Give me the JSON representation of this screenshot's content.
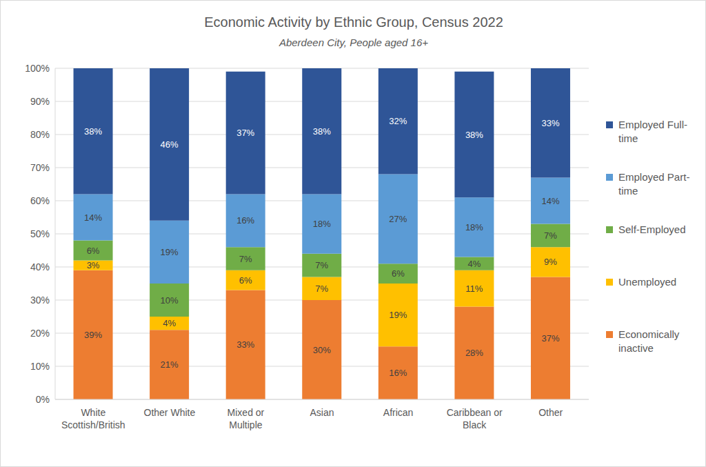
{
  "chart_data": {
    "type": "bar",
    "title": "Economic Activity by Ethnic Group, Census 2022",
    "subtitle": "Aberdeen City, People aged 16+",
    "categories": [
      "White Scottish/British",
      "Other White",
      "Mixed or Multiple",
      "Asian",
      "African",
      "Caribbean or Black",
      "Other"
    ],
    "series": [
      {
        "name": "Economically inactive",
        "color": "#ED7D31",
        "values": [
          39,
          21,
          33,
          30,
          16,
          28,
          37
        ],
        "value_labels": [
          "39%",
          "21%",
          "33%",
          "30%",
          "16%",
          "28%",
          "37%"
        ]
      },
      {
        "name": "Unemployed",
        "color": "#FFC000",
        "values": [
          3,
          4,
          6,
          7,
          19,
          11,
          9
        ],
        "value_labels": [
          "3%",
          "4%",
          "6%",
          "7%",
          "19%",
          "11%",
          "9%"
        ]
      },
      {
        "name": "Self-Employed",
        "color": "#70AD47",
        "values": [
          6,
          10,
          7,
          7,
          6,
          4,
          7
        ],
        "value_labels": [
          "6%",
          "10%",
          "7%",
          "7%",
          "6%",
          "4%",
          "7%"
        ]
      },
      {
        "name": "Employed Part-time",
        "color": "#5B9BD5",
        "values": [
          14,
          19,
          16,
          18,
          27,
          18,
          14
        ],
        "value_labels": [
          "14%",
          "19%",
          "16%",
          "18%",
          "27%",
          "18%",
          "14%"
        ]
      },
      {
        "name": "Employed Full-time",
        "color": "#2F5597",
        "values": [
          38,
          46,
          37,
          38,
          32,
          38,
          33
        ],
        "value_labels": [
          "38%",
          "46%",
          "37%",
          "38%",
          "32%",
          "38%",
          "33%"
        ]
      }
    ],
    "ylim": [
      0,
      100
    ],
    "yticks": [
      {
        "value": 0,
        "label": "0%"
      },
      {
        "value": 10,
        "label": "10%"
      },
      {
        "value": 20,
        "label": "20%"
      },
      {
        "value": 30,
        "label": "30%"
      },
      {
        "value": 40,
        "label": "40%"
      },
      {
        "value": 50,
        "label": "50%"
      },
      {
        "value": 60,
        "label": "60%"
      },
      {
        "value": 70,
        "label": "70%"
      },
      {
        "value": 80,
        "label": "80%"
      },
      {
        "value": 90,
        "label": "90%"
      },
      {
        "value": 100,
        "label": "100%"
      }
    ],
    "grid": true,
    "stacked": true,
    "data_labels": true,
    "legend": "right"
  }
}
